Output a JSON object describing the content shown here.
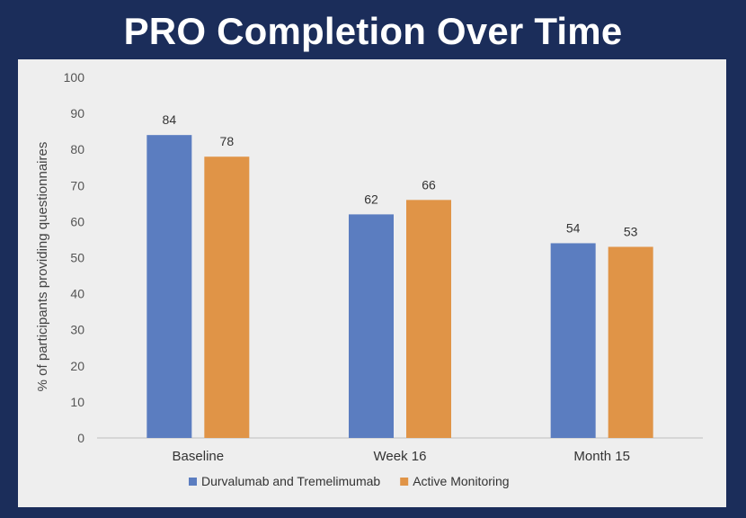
{
  "slide": {
    "title": "PRO Completion Over Time"
  },
  "chart_data": {
    "type": "bar",
    "title": "",
    "categories": [
      "Baseline",
      "Week 16",
      "Month 15"
    ],
    "series": [
      {
        "name": "Durvalumab and Tremelimumab",
        "values": [
          84,
          62,
          54
        ],
        "color": "#5b7dc0"
      },
      {
        "name": "Active Monitoring",
        "values": [
          78,
          66,
          53
        ],
        "color": "#e09447"
      }
    ],
    "xlabel": "",
    "ylabel": "% of participants providing questionnaires",
    "ylim": [
      0,
      100
    ],
    "yticks": [
      0,
      10,
      20,
      30,
      40,
      50,
      60,
      70,
      80,
      90,
      100
    ],
    "grid": false,
    "legend": "bottom",
    "data_labels": true
  }
}
